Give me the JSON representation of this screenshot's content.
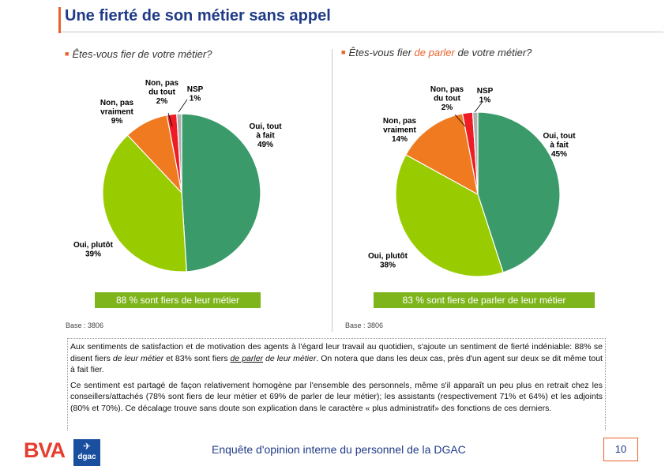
{
  "title": "Une fierté de son métier sans appel",
  "questions": {
    "left": "Êtes-vous fier de votre métier?",
    "right_pre": "Êtes-vous fier ",
    "right_hl": "de parler",
    "right_post": " de votre métier?"
  },
  "chart_data": [
    {
      "type": "pie",
      "title": "Êtes-vous fier de votre métier?",
      "slices": [
        {
          "label_line1": "Oui, tout",
          "label_line2": "à fait",
          "pct": "49%",
          "value": 49,
          "color": "#3a9a6a"
        },
        {
          "label_line1": "Oui, plutôt",
          "label_line2": "",
          "pct": "39%",
          "value": 39,
          "color": "#99cc00"
        },
        {
          "label_line1": "Non, pas",
          "label_line2": "vraiment",
          "pct": "9%",
          "value": 9,
          "color": "#f07a20"
        },
        {
          "label_line1": "Non, pas",
          "label_line2": "du tout",
          "pct": "2%",
          "value": 2,
          "color": "#ee1c25"
        },
        {
          "label_line1": "NSP",
          "label_line2": "",
          "pct": "1%",
          "value": 1,
          "color": "#b0b0b0"
        }
      ],
      "summary": "88 % sont fiers de leur métier",
      "base": "Base : 3806"
    },
    {
      "type": "pie",
      "title": "Êtes-vous fier de parler de votre métier?",
      "slices": [
        {
          "label_line1": "Oui, tout",
          "label_line2": "à fait",
          "pct": "45%",
          "value": 45,
          "color": "#3a9a6a"
        },
        {
          "label_line1": "Oui, plutôt",
          "label_line2": "",
          "pct": "38%",
          "value": 38,
          "color": "#99cc00"
        },
        {
          "label_line1": "Non, pas",
          "label_line2": "vraiment",
          "pct": "14%",
          "value": 14,
          "color": "#f07a20"
        },
        {
          "label_line1": "Non, pas",
          "label_line2": "du tout",
          "pct": "2%",
          "value": 2,
          "color": "#ee1c25"
        },
        {
          "label_line1": "NSP",
          "label_line2": "",
          "pct": "1%",
          "value": 1,
          "color": "#b0b0b0"
        }
      ],
      "summary": "83 % sont fiers de parler de leur métier",
      "base": "Base : 3806"
    }
  ],
  "paragraphs": {
    "p1_a": "Aux sentiments de satisfaction et de motivation des agents à l'égard leur travail au quotidien, s'ajoute un sentiment de fierté indéniable: 88% se disent fiers ",
    "p1_em1": "de leur métier",
    "p1_b": " et 83% sont fiers ",
    "p1_em2u": "de parler",
    "p1_em2": " de leur métier",
    "p1_c": ". On notera que dans les deux cas, près d'un agent sur deux se dit même tout à fait fier.",
    "p2": "Ce sentiment est partagé de façon relativement homogène par l'ensemble des personnels, même s'il apparaît un peu plus en retrait chez les conseillers/attachés (78% sont fiers de leur métier et 69% de parler de leur métier); les assistants (respectivement 71% et 64%) et les adjoints (80% et 70%). Ce décalage trouve sans doute son explication dans le caractère « plus administratif» des fonctions de ces derniers."
  },
  "footer": {
    "bva": "BVA",
    "dgac": "dgac",
    "text": "Enquête d'opinion interne du personnel de la DGAC",
    "page": "10"
  }
}
